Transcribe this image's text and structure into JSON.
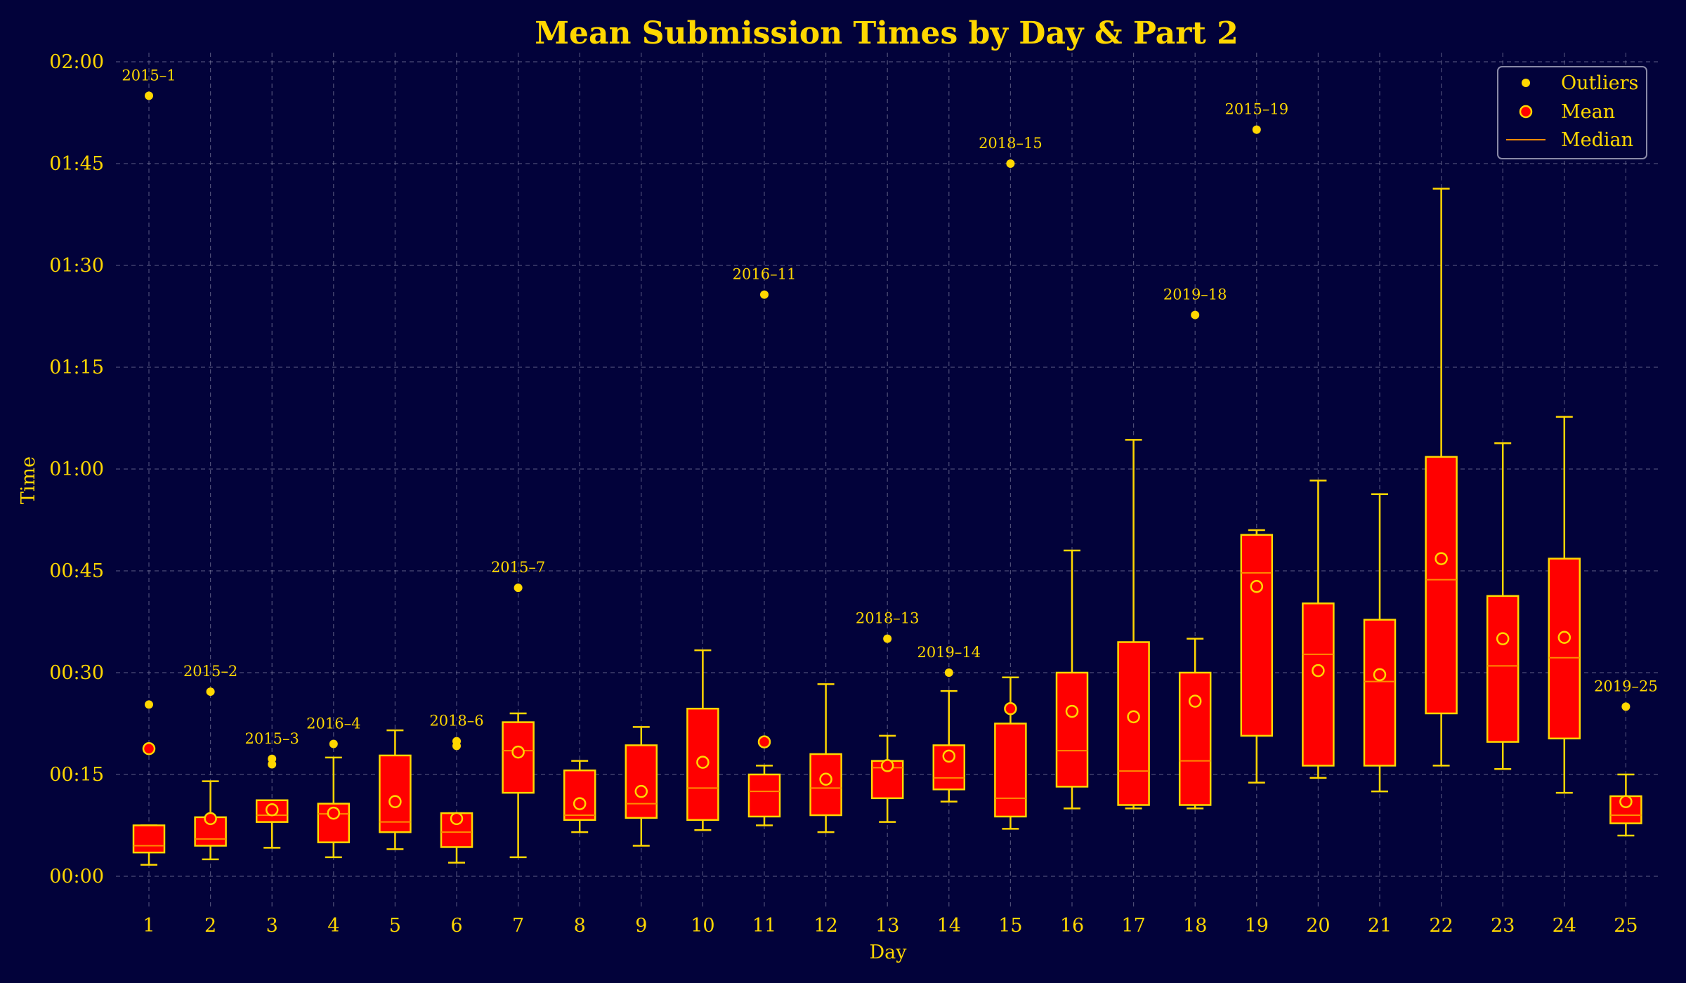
{
  "colors": {
    "background": "#02023a",
    "accent": "#ffd700",
    "box_fill": "#ff0000",
    "median": "#ff8c00",
    "grid": "#8a8aa8"
  },
  "chart_data": {
    "type": "box",
    "title": "Mean Submission Times by Day & Part 2",
    "xlabel": "Day",
    "ylabel": "Time",
    "y_unit": "minutes",
    "ylim": [
      -5,
      120
    ],
    "y_ticks": [
      {
        "value": 0,
        "label": "00:00"
      },
      {
        "value": 15,
        "label": "00:15"
      },
      {
        "value": 30,
        "label": "00:30"
      },
      {
        "value": 45,
        "label": "00:45"
      },
      {
        "value": 60,
        "label": "01:00"
      },
      {
        "value": 75,
        "label": "01:15"
      },
      {
        "value": 90,
        "label": "01:30"
      },
      {
        "value": 105,
        "label": "01:45"
      },
      {
        "value": 120,
        "label": "02:00"
      }
    ],
    "grid": true,
    "legend": {
      "placement": "top-right",
      "entries": [
        {
          "key": "outliers",
          "label": "Outliers"
        },
        {
          "key": "mean",
          "label": "Mean"
        },
        {
          "key": "median",
          "label": "Median"
        }
      ]
    },
    "boxes": [
      {
        "day": "1",
        "whisker_low": 1.7,
        "q1": 3.5,
        "median": 4.5,
        "q3": 7.5,
        "whisker_high": 7.5,
        "mean": 18.8,
        "outliers": [
          25.3,
          115.0
        ],
        "annotation": "2015–1"
      },
      {
        "day": "2",
        "whisker_low": 2.5,
        "q1": 4.5,
        "median": 5.5,
        "q3": 8.7,
        "whisker_high": 14.0,
        "mean": 8.5,
        "outliers": [
          27.2
        ],
        "annotation": "2015–2"
      },
      {
        "day": "3",
        "whisker_low": 4.2,
        "q1": 8.0,
        "median": 9.0,
        "q3": 11.2,
        "whisker_high": 11.2,
        "mean": 9.8,
        "outliers": [
          16.5,
          17.3
        ],
        "annotation": "2015–3"
      },
      {
        "day": "4",
        "whisker_low": 2.8,
        "q1": 5.0,
        "median": 9.2,
        "q3": 10.7,
        "whisker_high": 17.5,
        "mean": 9.3,
        "outliers": [
          19.5
        ],
        "annotation": "2016–4"
      },
      {
        "day": "5",
        "whisker_low": 4.0,
        "q1": 6.5,
        "median": 8.0,
        "q3": 17.8,
        "whisker_high": 21.5,
        "mean": 11.0,
        "outliers": [],
        "annotation": ""
      },
      {
        "day": "6",
        "whisker_low": 2.0,
        "q1": 4.3,
        "median": 6.5,
        "q3": 9.3,
        "whisker_high": 9.3,
        "mean": 8.5,
        "outliers": [
          19.2,
          19.9
        ],
        "annotation": "2018–6"
      },
      {
        "day": "7",
        "whisker_low": 2.8,
        "q1": 12.3,
        "median": 18.5,
        "q3": 22.7,
        "whisker_high": 24.0,
        "mean": 18.3,
        "outliers": [
          42.5
        ],
        "annotation": "2015–7"
      },
      {
        "day": "8",
        "whisker_low": 6.5,
        "q1": 8.3,
        "median": 9.0,
        "q3": 15.6,
        "whisker_high": 17.0,
        "mean": 10.7,
        "outliers": [],
        "annotation": ""
      },
      {
        "day": "9",
        "whisker_low": 4.5,
        "q1": 8.6,
        "median": 10.7,
        "q3": 19.3,
        "whisker_high": 22.0,
        "mean": 12.5,
        "outliers": [],
        "annotation": ""
      },
      {
        "day": "10",
        "whisker_low": 6.8,
        "q1": 8.3,
        "median": 13.0,
        "q3": 24.7,
        "whisker_high": 33.3,
        "mean": 16.8,
        "outliers": [],
        "annotation": ""
      },
      {
        "day": "11",
        "whisker_low": 7.5,
        "q1": 8.8,
        "median": 12.5,
        "q3": 15.0,
        "whisker_high": 16.3,
        "mean": 19.8,
        "outliers": [
          85.7
        ],
        "annotation": "2016–11"
      },
      {
        "day": "12",
        "whisker_low": 6.5,
        "q1": 9.0,
        "median": 13.0,
        "q3": 18.0,
        "whisker_high": 28.3,
        "mean": 14.3,
        "outliers": [],
        "annotation": ""
      },
      {
        "day": "13",
        "whisker_low": 8.0,
        "q1": 11.5,
        "median": 16.0,
        "q3": 17.0,
        "whisker_high": 20.7,
        "mean": 16.3,
        "outliers": [
          35.0
        ],
        "annotation": "2018–13"
      },
      {
        "day": "14",
        "whisker_low": 11.0,
        "q1": 12.8,
        "median": 14.5,
        "q3": 19.3,
        "whisker_high": 27.3,
        "mean": 17.7,
        "outliers": [
          30.0
        ],
        "annotation": "2019–14"
      },
      {
        "day": "15",
        "whisker_low": 7.0,
        "q1": 8.8,
        "median": 11.5,
        "q3": 22.5,
        "whisker_high": 29.3,
        "mean": 24.7,
        "outliers": [
          105.0
        ],
        "annotation": "2018–15"
      },
      {
        "day": "16",
        "whisker_low": 10.0,
        "q1": 13.2,
        "median": 18.5,
        "q3": 30.0,
        "whisker_high": 48.0,
        "mean": 24.3,
        "outliers": [],
        "annotation": ""
      },
      {
        "day": "17",
        "whisker_low": 10.0,
        "q1": 10.5,
        "median": 15.5,
        "q3": 34.5,
        "whisker_high": 64.3,
        "mean": 23.5,
        "outliers": [],
        "annotation": ""
      },
      {
        "day": "18",
        "whisker_low": 10.0,
        "q1": 10.5,
        "median": 17.0,
        "q3": 30.0,
        "whisker_high": 35.0,
        "mean": 25.8,
        "outliers": [
          82.7
        ],
        "annotation": "2019–18"
      },
      {
        "day": "19",
        "whisker_low": 13.8,
        "q1": 20.7,
        "median": 44.7,
        "q3": 50.3,
        "whisker_high": 51.0,
        "mean": 42.7,
        "outliers": [
          110.0
        ],
        "annotation": "2015–19"
      },
      {
        "day": "20",
        "whisker_low": 14.5,
        "q1": 16.3,
        "median": 32.7,
        "q3": 40.2,
        "whisker_high": 58.3,
        "mean": 30.3,
        "outliers": [],
        "annotation": ""
      },
      {
        "day": "21",
        "whisker_low": 12.5,
        "q1": 16.3,
        "median": 28.7,
        "q3": 37.8,
        "whisker_high": 56.3,
        "mean": 29.7,
        "outliers": [],
        "annotation": ""
      },
      {
        "day": "22",
        "whisker_low": 16.3,
        "q1": 24.0,
        "median": 43.7,
        "q3": 61.8,
        "whisker_high": 101.3,
        "mean": 46.8,
        "outliers": [],
        "annotation": ""
      },
      {
        "day": "23",
        "whisker_low": 15.8,
        "q1": 19.8,
        "median": 31.0,
        "q3": 41.3,
        "whisker_high": 63.8,
        "mean": 35.0,
        "outliers": [],
        "annotation": ""
      },
      {
        "day": "24",
        "whisker_low": 12.3,
        "q1": 20.3,
        "median": 32.2,
        "q3": 46.8,
        "whisker_high": 67.7,
        "mean": 35.2,
        "outliers": [],
        "annotation": ""
      },
      {
        "day": "25",
        "whisker_low": 6.0,
        "q1": 7.8,
        "median": 9.0,
        "q3": 11.8,
        "whisker_high": 15.0,
        "mean": 11.0,
        "outliers": [
          25.0
        ],
        "annotation": "2019–25"
      }
    ]
  }
}
